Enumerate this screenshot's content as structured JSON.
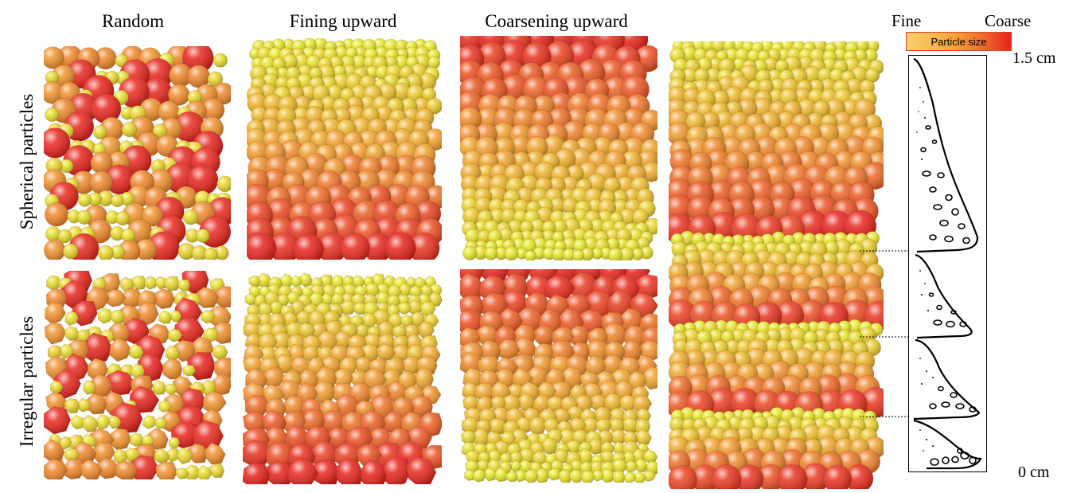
{
  "columns": {
    "random": "Random",
    "fining": "Fining upward",
    "coarsening": "Coarsening upward"
  },
  "rows": {
    "spherical": "Spherical particles",
    "irregular": "Irregular particles"
  },
  "legend": {
    "fine": "Fine",
    "coarse": "Coarse",
    "bar_label": "Particle size"
  },
  "axis": {
    "top": "1.5 cm",
    "bottom": "0 cm"
  },
  "colors": {
    "fine": "#e8ea2e",
    "medium": "#f0a030",
    "coarse": "#e6231d"
  }
}
